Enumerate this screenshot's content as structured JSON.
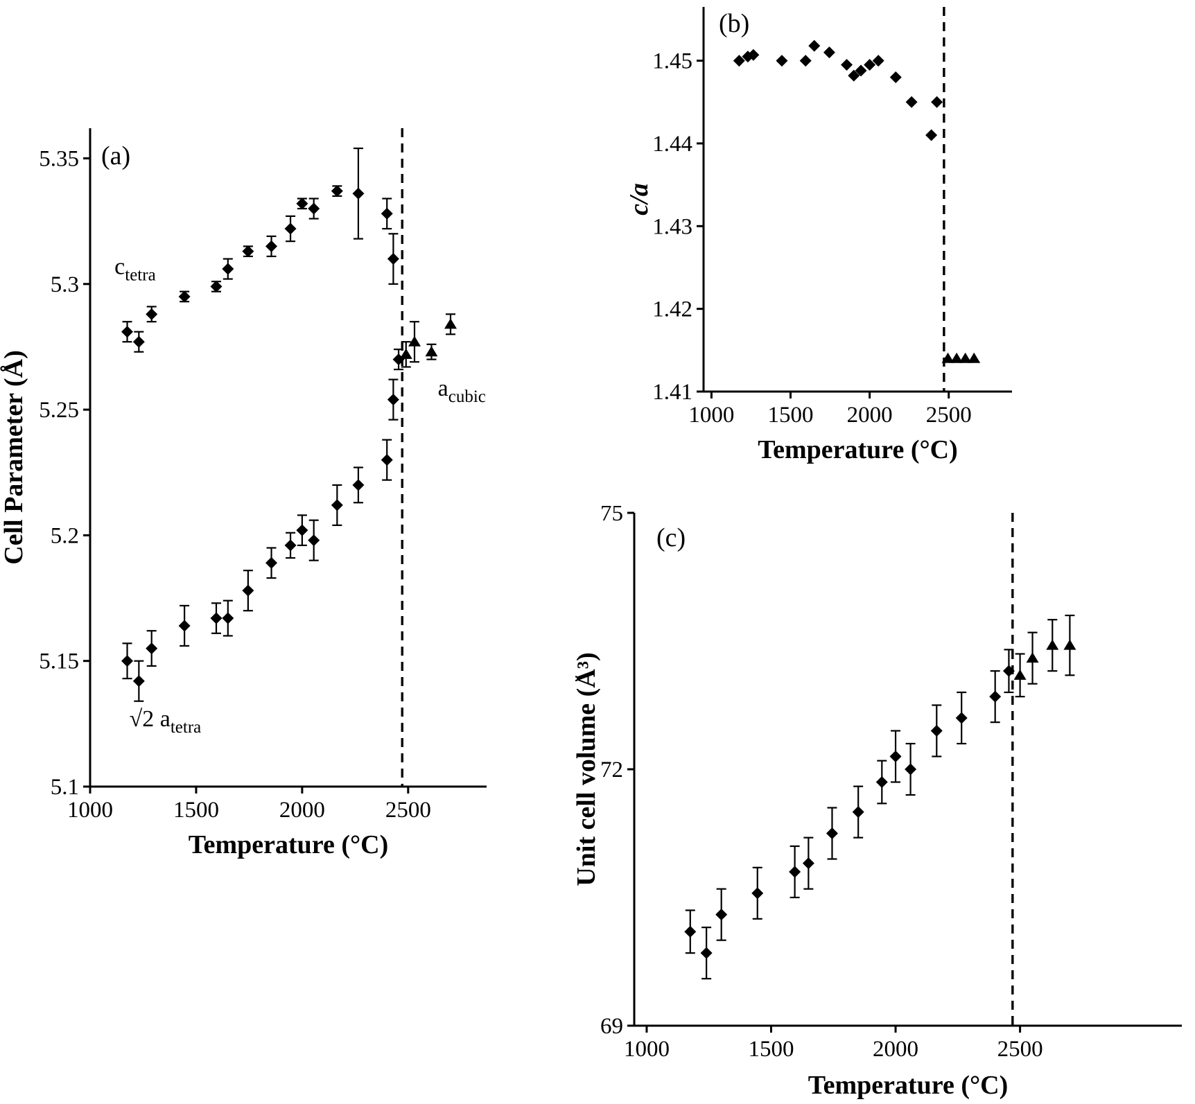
{
  "figure": {
    "background": "#ffffff",
    "ink_color": "#000000"
  },
  "chart_data": [
    {
      "id": "a",
      "type": "scatter",
      "panel_label": "(a)",
      "xlabel": "Temperature (°C)",
      "ylabel": "Cell Parameter (Å)",
      "xlim": [
        1000,
        2870
      ],
      "ylim": [
        5.1,
        5.362
      ],
      "xticks": [
        1000,
        1500,
        2000,
        2500
      ],
      "yticks": [
        5.1,
        5.15,
        5.2,
        5.25,
        5.3,
        5.35
      ],
      "ytick_labels": [
        "5.1",
        "5.15",
        "5.2",
        "5.25",
        "5.3",
        "5.35"
      ],
      "grid": false,
      "dashed_vline_x": 2472,
      "annotations": [
        {
          "name": "c-tetra-label",
          "main": "c",
          "sub": "tetra",
          "x": 1115,
          "y": 5.304
        },
        {
          "name": "sqrt2-a-tetra-label",
          "main": "√2 a",
          "sub": "tetra",
          "x": 1185,
          "y": 5.124
        },
        {
          "name": "a-cubic-label",
          "main": "a",
          "sub": "cubic",
          "x": 2640,
          "y": 5.2555
        }
      ],
      "series": [
        {
          "name": "c_tetra",
          "marker": "diamond",
          "points": [
            [
              1175,
              5.281,
              0.004
            ],
            [
              1230,
              5.277,
              0.004
            ],
            [
              1290,
              5.288,
              0.003
            ],
            [
              1445,
              5.295,
              0.002
            ],
            [
              1595,
              5.299,
              0.002
            ],
            [
              1650,
              5.306,
              0.004
            ],
            [
              1745,
              5.313,
              0.002
            ],
            [
              1855,
              5.315,
              0.004
            ],
            [
              1945,
              5.322,
              0.005
            ],
            [
              2000,
              5.332,
              0.002
            ],
            [
              2055,
              5.33,
              0.004
            ],
            [
              2165,
              5.337,
              0.002
            ],
            [
              2265,
              5.336,
              0.018
            ],
            [
              2400,
              5.328,
              0.006
            ],
            [
              2430,
              5.31,
              0.01
            ]
          ]
        },
        {
          "name": "sqrt2_a_tetra",
          "marker": "diamond",
          "points": [
            [
              1175,
              5.15,
              0.007
            ],
            [
              1230,
              5.142,
              0.008
            ],
            [
              1290,
              5.155,
              0.007
            ],
            [
              1445,
              5.164,
              0.008
            ],
            [
              1595,
              5.167,
              0.006
            ],
            [
              1650,
              5.167,
              0.007
            ],
            [
              1745,
              5.178,
              0.008
            ],
            [
              1855,
              5.189,
              0.006
            ],
            [
              1945,
              5.196,
              0.005
            ],
            [
              2000,
              5.202,
              0.006
            ],
            [
              2055,
              5.198,
              0.008
            ],
            [
              2165,
              5.212,
              0.008
            ],
            [
              2265,
              5.22,
              0.007
            ],
            [
              2400,
              5.23,
              0.008
            ],
            [
              2430,
              5.254,
              0.008
            ],
            [
              2455,
              5.27,
              0.004
            ]
          ]
        },
        {
          "name": "a_cubic",
          "marker": "triangle",
          "points": [
            [
              2490,
              5.272,
              0.005
            ],
            [
              2530,
              5.277,
              0.008
            ],
            [
              2610,
              5.273,
              0.003
            ],
            [
              2700,
              5.284,
              0.004
            ]
          ]
        }
      ]
    },
    {
      "id": "b",
      "type": "scatter",
      "panel_label": "(b)",
      "xlabel": "Temperature (°C)",
      "ylabel": "c/a",
      "ylabel_italic": true,
      "xlim": [
        950,
        2900
      ],
      "ylim": [
        1.41,
        1.4565
      ],
      "xticks": [
        1000,
        1500,
        2000,
        2500
      ],
      "yticks": [
        1.41,
        1.42,
        1.43,
        1.44,
        1.45
      ],
      "ytick_labels": [
        "1.41",
        "1.42",
        "1.43",
        "1.44",
        "1.45"
      ],
      "grid": false,
      "dashed_vline_x": 2470,
      "annotations": [],
      "series": [
        {
          "name": "c_over_a_tetragonal",
          "marker": "diamond",
          "points": [
            [
              1175,
              1.45
            ],
            [
              1230,
              1.4505
            ],
            [
              1265,
              1.4507
            ],
            [
              1445,
              1.45
            ],
            [
              1595,
              1.45
            ],
            [
              1650,
              1.4518
            ],
            [
              1745,
              1.451
            ],
            [
              1855,
              1.4495
            ],
            [
              1900,
              1.4482
            ],
            [
              1945,
              1.4488
            ],
            [
              2000,
              1.4495
            ],
            [
              2055,
              1.45
            ],
            [
              2165,
              1.448
            ],
            [
              2265,
              1.445
            ],
            [
              2390,
              1.441
            ],
            [
              2425,
              1.445
            ]
          ]
        },
        {
          "name": "c_over_a_cubic",
          "marker": "triangle",
          "points": [
            [
              2495,
              1.414
            ],
            [
              2550,
              1.414
            ],
            [
              2605,
              1.414
            ],
            [
              2660,
              1.414
            ]
          ]
        }
      ]
    },
    {
      "id": "c",
      "type": "scatter",
      "panel_label": "(c)",
      "xlabel": "Temperature (°C)",
      "ylabel": "Unit cell volume (Å³)",
      "xlim": [
        950,
        3150
      ],
      "ylim": [
        69,
        75
      ],
      "xticks": [
        1000,
        1500,
        2000,
        2500
      ],
      "yticks": [
        69,
        72,
        75
      ],
      "ytick_labels": [
        "69",
        "72",
        "75"
      ],
      "grid": false,
      "dashed_vline_x": 2470,
      "annotations": [],
      "series": [
        {
          "name": "volume_tetragonal",
          "marker": "diamond",
          "points": [
            [
              1175,
              70.1,
              0.25
            ],
            [
              1240,
              69.85,
              0.3
            ],
            [
              1300,
              70.3,
              0.3
            ],
            [
              1445,
              70.55,
              0.3
            ],
            [
              1595,
              70.8,
              0.3
            ],
            [
              1650,
              70.9,
              0.3
            ],
            [
              1745,
              71.25,
              0.3
            ],
            [
              1850,
              71.5,
              0.3
            ],
            [
              1945,
              71.85,
              0.25
            ],
            [
              2000,
              72.15,
              0.3
            ],
            [
              2060,
              72.0,
              0.3
            ],
            [
              2165,
              72.45,
              0.3
            ],
            [
              2265,
              72.6,
              0.3
            ],
            [
              2400,
              72.85,
              0.3
            ],
            [
              2455,
              73.15,
              0.25
            ]
          ]
        },
        {
          "name": "volume_cubic",
          "marker": "triangle",
          "points": [
            [
              2500,
              73.1,
              0.25
            ],
            [
              2550,
              73.3,
              0.3
            ],
            [
              2630,
              73.45,
              0.3
            ],
            [
              2700,
              73.45,
              0.35
            ]
          ]
        }
      ]
    }
  ]
}
